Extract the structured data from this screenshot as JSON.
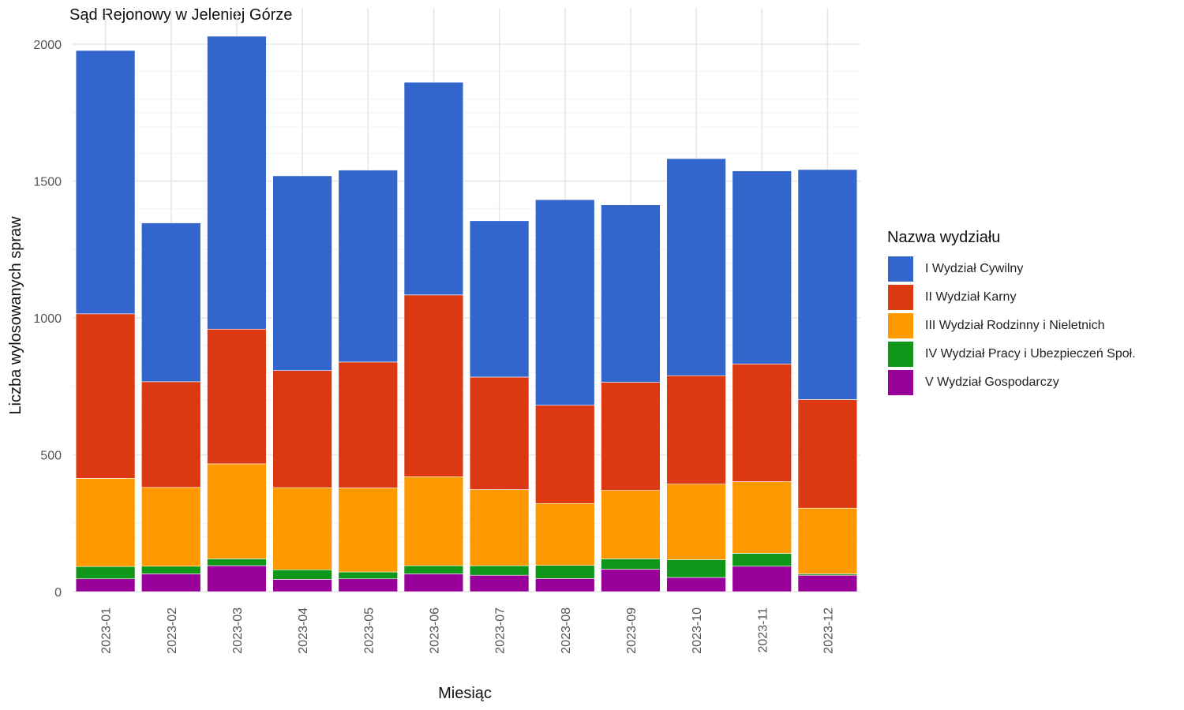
{
  "chart_data": {
    "type": "bar",
    "stacked": true,
    "title": "Sąd Rejonowy w Jeleniej Górze",
    "xlabel": "Miesiąc",
    "ylabel": "Liczba wylosowanych spraw",
    "ylim": [
      0,
      2050
    ],
    "yticks": [
      "0",
      "500",
      "1000",
      "1500",
      "2000"
    ],
    "grid": true,
    "legend_position": "right",
    "legend_title": "Nazwa wydziału",
    "categories": [
      "2023-01",
      "2023-02",
      "2023-03",
      "2023-04",
      "2023-05",
      "2023-06",
      "2023-07",
      "2023-08",
      "2023-09",
      "2023-10",
      "2023-11",
      "2023-12"
    ],
    "series": [
      {
        "name": "V Wydział Gospodarczy",
        "color": "#990099",
        "values": [
          47,
          65,
          95,
          45,
          47,
          65,
          60,
          48,
          82,
          52,
          93,
          60
        ]
      },
      {
        "name": "IV Wydział Pracy i Ubezpieczeń Społ.",
        "color": "#109618",
        "values": [
          45,
          28,
          25,
          35,
          25,
          30,
          35,
          48,
          38,
          65,
          47,
          5
        ]
      },
      {
        "name": "III Wydział Rodzinny i Nieletnich",
        "color": "#FF9900",
        "values": [
          322,
          288,
          347,
          300,
          307,
          325,
          278,
          226,
          250,
          276,
          262,
          240
        ]
      },
      {
        "name": "II Wydział Karny",
        "color": "#DC3912",
        "values": [
          601,
          386,
          492,
          428,
          460,
          664,
          411,
          359,
          395,
          396,
          430,
          397
        ]
      },
      {
        "name": "I Wydział Cywilny",
        "color": "#3366CC",
        "values": [
          962,
          580,
          1070,
          711,
          701,
          777,
          571,
          751,
          648,
          793,
          705,
          840
        ]
      }
    ],
    "legend_order": [
      "I Wydział Cywilny",
      "II Wydział Karny",
      "III Wydział Rodzinny i Nieletnich",
      "IV Wydział Pracy i Ubezpieczeń Społ.",
      "V Wydział Gospodarczy"
    ]
  }
}
